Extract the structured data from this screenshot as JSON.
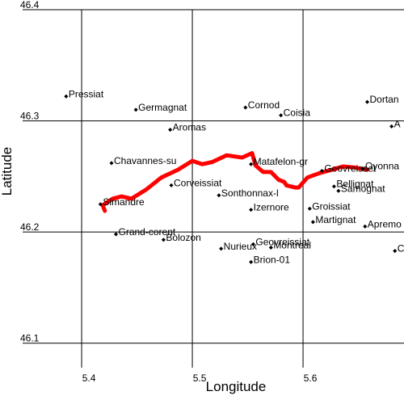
{
  "chart_data": {
    "type": "scatter",
    "xlabel": "Longitude",
    "ylabel": "Latitude",
    "xlim": [
      5.3445,
      5.6912
    ],
    "ylim": [
      46.078,
      46.4
    ],
    "xticks": [
      5.4,
      5.5,
      5.6
    ],
    "yticks": [
      46.1,
      46.2,
      46.3,
      46.4
    ],
    "grid": true,
    "point_color": "#000000",
    "points": {
      "labels": [
        "Pressiat",
        "Germagnat",
        "Cornod",
        "Coisia",
        "Dortan",
        "Aromas",
        "A",
        "Chavannes-su",
        "Corveissiat",
        "Matafelon-gr",
        "Sonthonnax-l",
        "Geovreisset",
        "Oyonna",
        "Bellignat",
        "Samognat",
        "Simandre",
        "Izernore",
        "Groissiat",
        "Martignat",
        "Apremo",
        "Grand-corent",
        "Bolozon",
        "Nurieux",
        "Geovreissiat",
        "Montreal",
        "C",
        "Brion-01"
      ],
      "x": [
        5.386,
        5.449,
        5.548,
        5.58,
        5.658,
        5.48,
        5.68,
        5.427,
        5.481,
        5.553,
        5.524,
        5.617,
        5.654,
        5.628,
        5.632,
        5.417,
        5.553,
        5.606,
        5.609,
        5.656,
        5.431,
        5.474,
        5.526,
        5.555,
        5.571,
        5.683,
        5.553
      ],
      "y": [
        46.322,
        46.31,
        46.312,
        46.305,
        46.317,
        46.292,
        46.295,
        46.262,
        46.242,
        46.261,
        46.233,
        46.255,
        46.257,
        46.241,
        46.237,
        46.225,
        46.22,
        46.221,
        46.209,
        46.205,
        46.198,
        46.193,
        46.185,
        46.189,
        46.186,
        46.183,
        46.173
      ]
    },
    "track": {
      "color": "#ff0000",
      "x": [
        5.421,
        5.419,
        5.428,
        5.436,
        5.445,
        5.458,
        5.472,
        5.487,
        5.5,
        5.509,
        5.518,
        5.531,
        5.545,
        5.554,
        5.557,
        5.564,
        5.571,
        5.578,
        5.583,
        5.585,
        5.593,
        5.596,
        5.604,
        5.615,
        5.626,
        5.636,
        5.647,
        5.658
      ],
      "y": [
        46.219,
        46.224,
        46.23,
        46.232,
        46.23,
        46.238,
        46.249,
        46.256,
        46.264,
        46.261,
        46.263,
        46.269,
        46.267,
        46.271,
        46.26,
        46.254,
        46.254,
        46.247,
        46.245,
        46.242,
        46.24,
        46.24,
        46.249,
        46.253,
        46.256,
        46.259,
        46.258,
        46.256
      ]
    }
  }
}
